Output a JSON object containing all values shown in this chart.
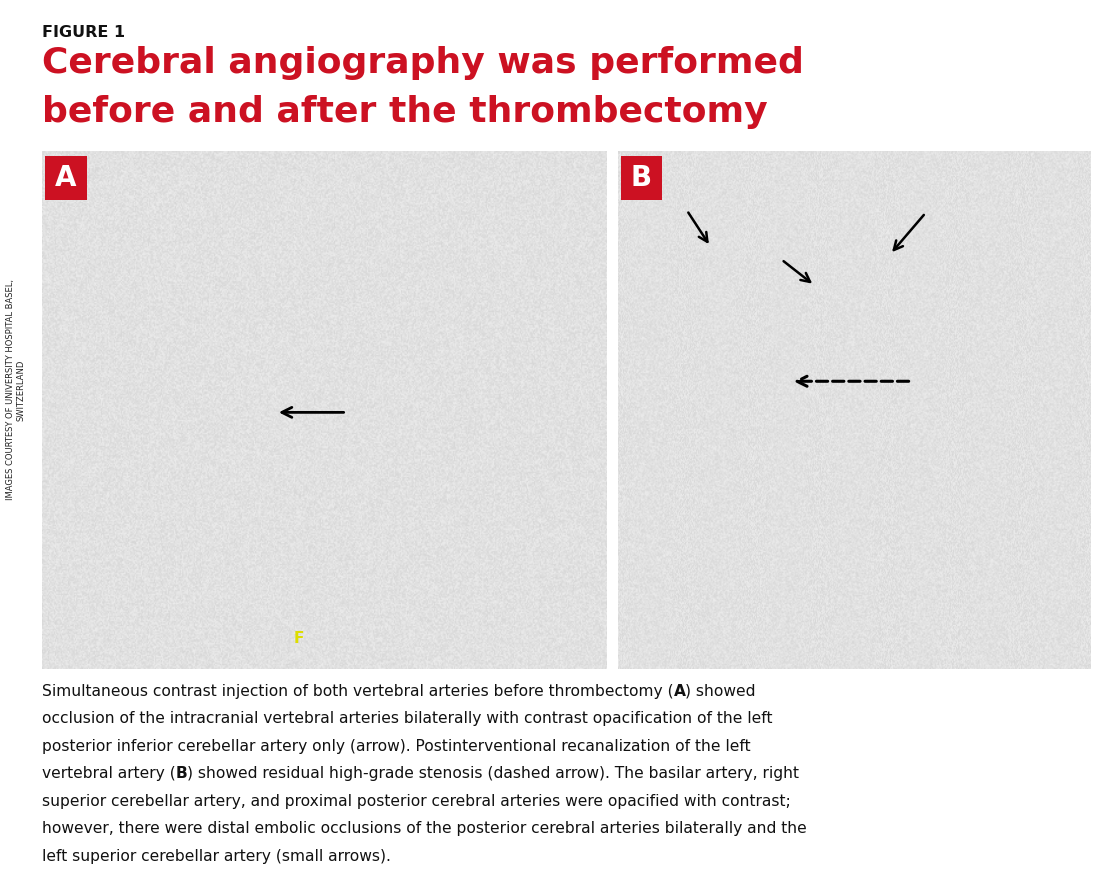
{
  "figure_label": "FIGURE 1",
  "title_line1": "Cerebral angiography was performed",
  "title_line2": "before and after the thrombectomy",
  "title_color": "#cc1122",
  "figure_label_color": "#111111",
  "bg_color": "#ffffff",
  "panel_A_label": "A",
  "panel_B_label": "B",
  "panel_label_bg": "#cc1122",
  "panel_label_color": "#ffffff",
  "side_text_line1": "IMAGES COURTESY OF UNIVERSITY HOSPITAL BASEL,",
  "side_text_line2": "SWITZERLAND",
  "image_bg_value": 0.88,
  "caption_line1": "Simultaneous contrast injection of both vertebral arteries before thrombectomy (",
  "caption_A": "A",
  "caption_mid1": ") showed",
  "caption_line2": "occlusion of the intracranial vertebral arteries bilaterally with contrast opacification of the left",
  "caption_line3": "posterior inferior cerebellar artery only (arrow). Postinterventional recanalization of the left",
  "caption_line4a": "vertebral artery (",
  "caption_B": "B",
  "caption_line4b": ") showed residual high-grade stenosis (dashed arrow). The basilar artery, right",
  "caption_line5": "superior cerebellar artery, and proximal posterior cerebral arteries were opacified with contrast;",
  "caption_line6": "however, there were distal embolic occlusions of the posterior cerebral arteries bilaterally and the",
  "caption_line7": "left superior cerebellar artery (small arrows).",
  "yellow_f": "F"
}
